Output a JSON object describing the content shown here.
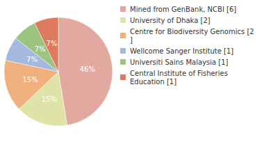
{
  "chart_data": {
    "type": "pie",
    "categories": [
      "Mined from GenBank, NCBI [6]",
      "University of Dhaka [2]",
      "Centre for Biodiversity Genomics [2]",
      "Wellcome Sanger Institute [1]",
      "Universiti Sains Malaysia [1]",
      "Central Institute of Fisheries Education [1]"
    ],
    "values": [
      46,
      15,
      15,
      7,
      7,
      7
    ],
    "value_labels": [
      "46%",
      "15%",
      "15%",
      "7%",
      "7%",
      "7%"
    ],
    "colors": [
      "#e2a9a1",
      "#dfe3a7",
      "#f0b07d",
      "#a5b9df",
      "#9dc47f",
      "#de7a5f"
    ],
    "data_labels": true,
    "legend": "right"
  }
}
